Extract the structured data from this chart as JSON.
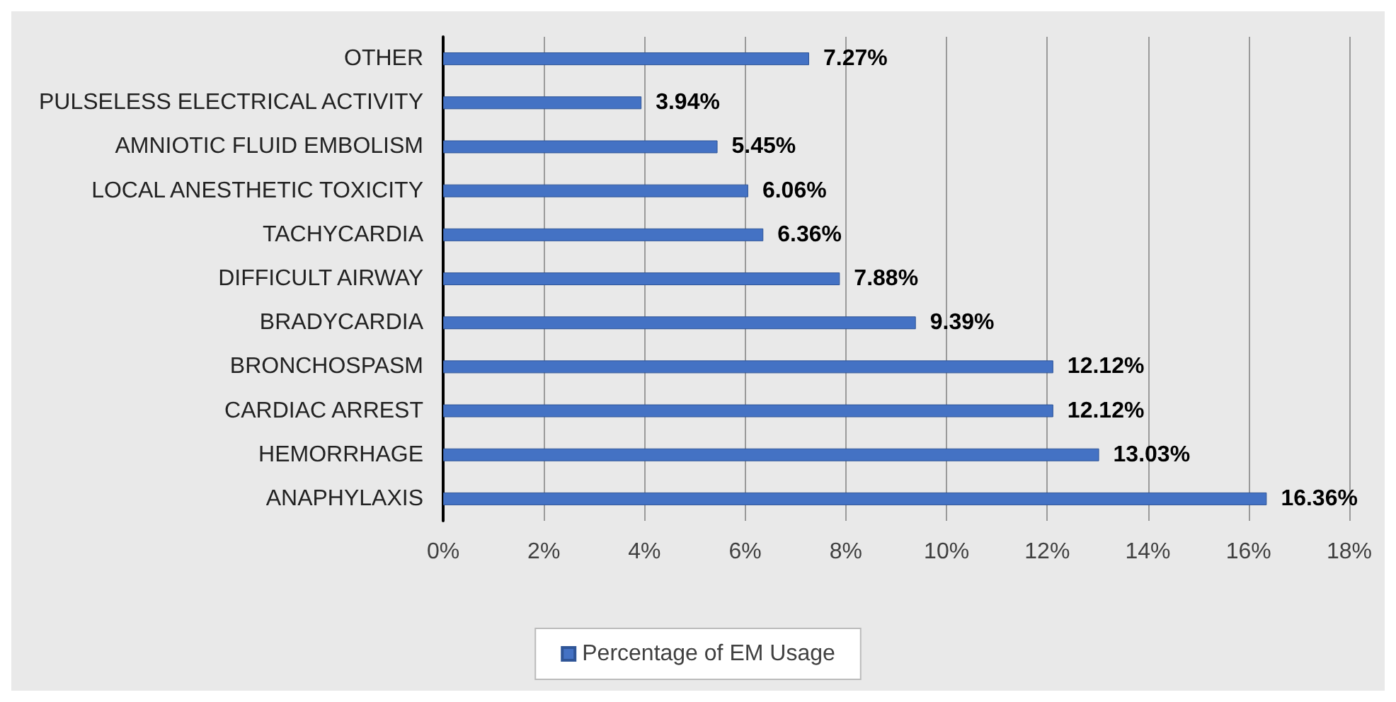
{
  "chart_data": {
    "type": "bar",
    "orientation": "horizontal",
    "categories": [
      "OTHER",
      "PULSELESS ELECTRICAL ACTIVITY",
      "AMNIOTIC FLUID EMBOLISM",
      "LOCAL ANESTHETIC TOXICITY",
      "TACHYCARDIA",
      "DIFFICULT AIRWAY",
      "BRADYCARDIA",
      "BRONCHOSPASM",
      "CARDIAC ARREST",
      "HEMORRHAGE",
      "ANAPHYLAXIS"
    ],
    "series": [
      {
        "name": "Percentage of EM Usage",
        "color": "#4472c4",
        "values": [
          7.27,
          3.94,
          5.45,
          6.06,
          6.36,
          7.88,
          9.39,
          12.12,
          12.12,
          13.03,
          16.36
        ],
        "value_labels": [
          "7.27%",
          "3.94%",
          "5.45%",
          "6.06%",
          "6.36%",
          "7.88%",
          "9.39%",
          "12.12%",
          "12.12%",
          "13.03%",
          "16.36%"
        ]
      }
    ],
    "xlim": [
      0,
      18
    ],
    "xticks": [
      {
        "value": 0,
        "label": "0%"
      },
      {
        "value": 2,
        "label": "2%"
      },
      {
        "value": 4,
        "label": "4%"
      },
      {
        "value": 6,
        "label": "6%"
      },
      {
        "value": 8,
        "label": "8%"
      },
      {
        "value": 10,
        "label": "10%"
      },
      {
        "value": 12,
        "label": "12%"
      },
      {
        "value": 14,
        "label": "14%"
      },
      {
        "value": 16,
        "label": "16%"
      },
      {
        "value": 18,
        "label": "18%"
      }
    ],
    "grid": "x",
    "legend": "bottom"
  }
}
